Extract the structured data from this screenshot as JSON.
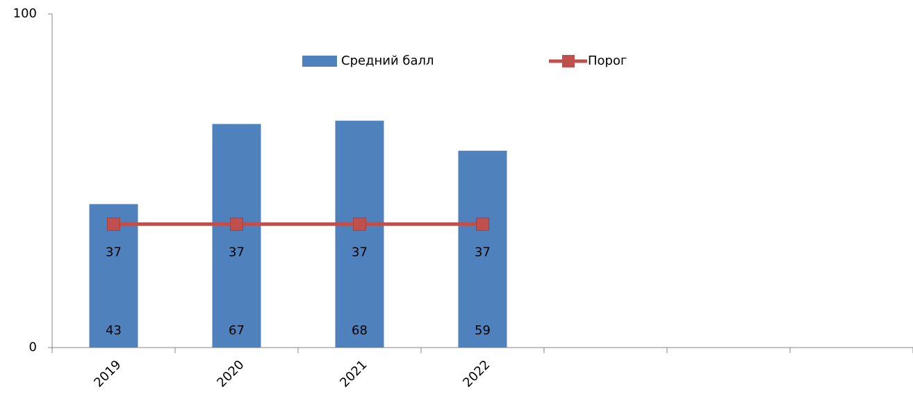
{
  "chart_data": {
    "type": "bar",
    "categories": [
      "2019",
      "2020",
      "2021",
      "2022",
      null,
      null,
      null
    ],
    "series": [
      {
        "name": "Средний балл",
        "type": "bar",
        "color": "#4f81bd",
        "values": [
          43,
          67,
          68,
          59,
          null,
          null,
          null
        ]
      },
      {
        "name": "Порог",
        "type": "line",
        "color": "#c0504d",
        "values": [
          37,
          37,
          37,
          37,
          null,
          null,
          null
        ]
      }
    ],
    "ylim": [
      0,
      100
    ],
    "yticks": [
      0,
      100
    ],
    "grid": false,
    "legend": "top"
  }
}
